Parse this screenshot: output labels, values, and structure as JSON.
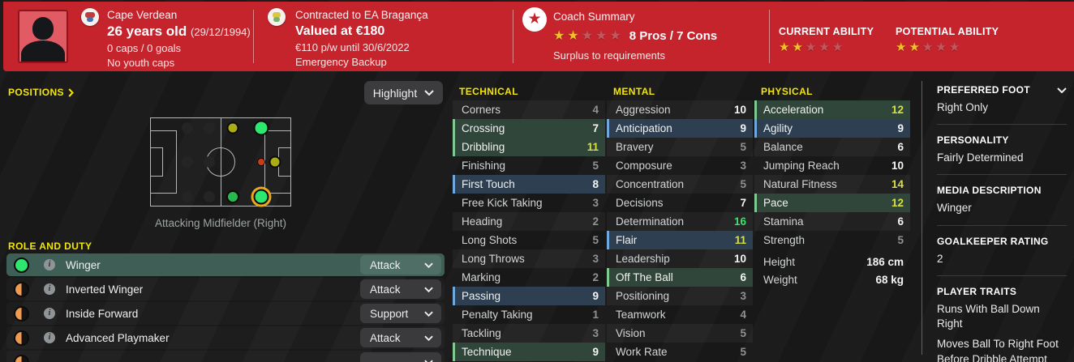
{
  "header": {
    "nationality": "Cape Verdean",
    "age": "26 years old",
    "birth_date": "(29/12/1994)",
    "caps_goals": "0 caps / 0 goals",
    "youth_caps": "No youth caps",
    "contract": "Contracted to EA Bragança",
    "value": "Valued at €180",
    "wage_until": "€110 p/w until 30/6/2022",
    "squad_status": "Emergency Backup",
    "coach_summary": {
      "label": "Coach Summary",
      "stars_filled": 2,
      "stars_total": 5,
      "pros_cons": "8 Pros / 7 Cons",
      "note": "Surplus to requirements"
    },
    "current_ability": {
      "label": "CURRENT ABILITY",
      "stars_filled": 2,
      "stars_total": 5
    },
    "potential_ability": {
      "label": "POTENTIAL ABILITY",
      "stars_filled": 2,
      "stars_total": 5
    }
  },
  "positions_panel": {
    "title": "POSITIONS",
    "highlight_label": "Highlight",
    "selected_position_caption": "Attacking Midfielder (Right)",
    "markers": [
      {
        "type": "untrained",
        "x": 26,
        "y": 11
      },
      {
        "type": "untrained",
        "x": 42,
        "y": 11
      },
      {
        "type": "untrained",
        "x": 26,
        "y": 50
      },
      {
        "type": "untrained",
        "x": 42,
        "y": 50
      },
      {
        "type": "untrained",
        "x": 26,
        "y": 90
      },
      {
        "type": "untrained",
        "x": 42,
        "y": 90
      },
      {
        "type": "competent",
        "x": 59,
        "y": 11
      },
      {
        "type": "natural",
        "x": 79,
        "y": 11
      },
      {
        "type": "awkward",
        "x": 79,
        "y": 50
      },
      {
        "type": "competent",
        "x": 89,
        "y": 50
      },
      {
        "type": "accomplished",
        "x": 59,
        "y": 90
      },
      {
        "type": "natural",
        "x": 79,
        "y": 90,
        "selected": true
      }
    ]
  },
  "roles_panel": {
    "title": "ROLE AND DUTY",
    "items": [
      {
        "name": "Winger",
        "duty": "Attack",
        "icon": "green-full",
        "selected": true
      },
      {
        "name": "Inverted Winger",
        "duty": "Attack",
        "icon": "orange-half"
      },
      {
        "name": "Inside Forward",
        "duty": "Support",
        "icon": "orange-half"
      },
      {
        "name": "Advanced Playmaker",
        "duty": "Attack",
        "icon": "orange-half"
      },
      {
        "name": "",
        "duty": "",
        "icon": "orange-half",
        "partial": true
      }
    ]
  },
  "attributes": {
    "technical": {
      "title": "TECHNICAL",
      "rows": [
        {
          "name": "Corners",
          "value": 4
        },
        {
          "name": "Crossing",
          "value": 7,
          "hl": "green"
        },
        {
          "name": "Dribbling",
          "value": 11,
          "hl": "green"
        },
        {
          "name": "Finishing",
          "value": 5
        },
        {
          "name": "First Touch",
          "value": 8,
          "hl": "blue"
        },
        {
          "name": "Free Kick Taking",
          "value": 3
        },
        {
          "name": "Heading",
          "value": 2
        },
        {
          "name": "Long Shots",
          "value": 5
        },
        {
          "name": "Long Throws",
          "value": 3
        },
        {
          "name": "Marking",
          "value": 2
        },
        {
          "name": "Passing",
          "value": 9,
          "hl": "blue"
        },
        {
          "name": "Penalty Taking",
          "value": 1
        },
        {
          "name": "Tackling",
          "value": 3
        },
        {
          "name": "Technique",
          "value": 9,
          "hl": "green"
        }
      ]
    },
    "mental": {
      "title": "MENTAL",
      "rows": [
        {
          "name": "Aggression",
          "value": 10
        },
        {
          "name": "Anticipation",
          "value": 9,
          "hl": "blue"
        },
        {
          "name": "Bravery",
          "value": 5
        },
        {
          "name": "Composure",
          "value": 3
        },
        {
          "name": "Concentration",
          "value": 5
        },
        {
          "name": "Decisions",
          "value": 7
        },
        {
          "name": "Determination",
          "value": 16
        },
        {
          "name": "Flair",
          "value": 11,
          "hl": "blue"
        },
        {
          "name": "Leadership",
          "value": 10
        },
        {
          "name": "Off The Ball",
          "value": 6,
          "hl": "green"
        },
        {
          "name": "Positioning",
          "value": 3
        },
        {
          "name": "Teamwork",
          "value": 4
        },
        {
          "name": "Vision",
          "value": 5
        },
        {
          "name": "Work Rate",
          "value": 5
        }
      ]
    },
    "physical": {
      "title": "PHYSICAL",
      "rows": [
        {
          "name": "Acceleration",
          "value": 12,
          "hl": "green"
        },
        {
          "name": "Agility",
          "value": 9,
          "hl": "blue"
        },
        {
          "name": "Balance",
          "value": 6
        },
        {
          "name": "Jumping Reach",
          "value": 10
        },
        {
          "name": "Natural Fitness",
          "value": 14
        },
        {
          "name": "Pace",
          "value": 12,
          "hl": "green"
        },
        {
          "name": "Stamina",
          "value": 6
        },
        {
          "name": "Strength",
          "value": 5
        }
      ],
      "extra": [
        {
          "name": "Height",
          "value": "186 cm"
        },
        {
          "name": "Weight",
          "value": "68 kg"
        }
      ]
    }
  },
  "sidebar": {
    "sections": [
      {
        "title": "PREFERRED FOOT",
        "chevron": true,
        "values": [
          "Right Only"
        ]
      },
      {
        "title": "PERSONALITY",
        "values": [
          "Fairly Determined"
        ]
      },
      {
        "title": "MEDIA DESCRIPTION",
        "values": [
          "Winger"
        ]
      },
      {
        "title": "GOALKEEPER RATING",
        "values": [
          "2"
        ]
      },
      {
        "title": "PLAYER TRAITS",
        "values": [
          "Runs With Ball Down Right",
          "Moves Ball To Right Foot Before Dribble Attempt"
        ]
      }
    ]
  },
  "colors": {
    "topbar_red": "#c5242d",
    "accent_yellow": "#f2e50b",
    "star_gold": "#f0c12a",
    "attr_green_highlight": "#7fcb8f",
    "attr_blue_highlight": "#6fa8de",
    "value_yellow": "#d8e03c",
    "value_green": "#41e06b",
    "natural_position_green": "#2ce86e",
    "selected_ring_gold": "#eaa71e"
  }
}
